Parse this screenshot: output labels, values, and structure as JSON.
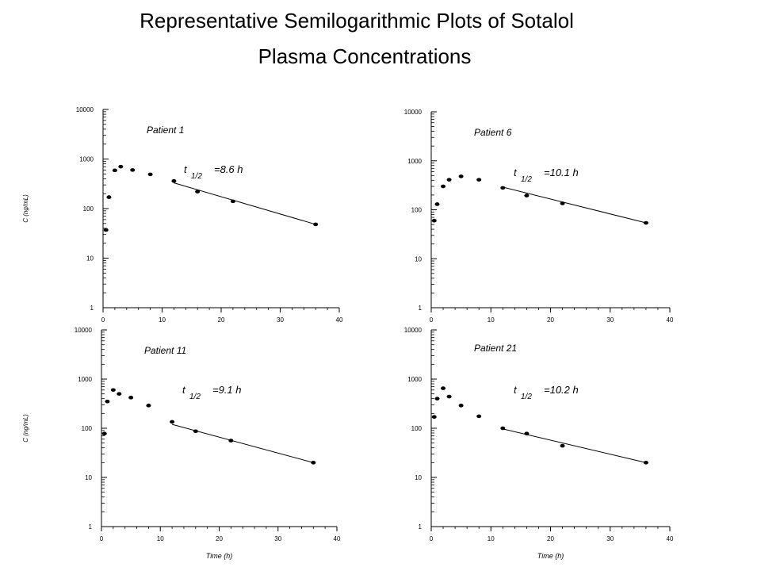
{
  "page": {
    "title_line1": "Representative Semilogarithmic Plots of Sotalol",
    "title_line2": "Plasma Concentrations"
  },
  "chart_data": [
    {
      "type": "scatter",
      "title": "Patient 1",
      "xlabel": "",
      "ylabel": "C (ng/mL)",
      "yscale": "log",
      "xlim": [
        0,
        40
      ],
      "ylim": [
        1,
        10000
      ],
      "xticks": [
        "0",
        "10",
        "20",
        "30",
        "40"
      ],
      "yticks": [
        "1",
        "10",
        "100",
        "1000",
        "10000"
      ],
      "points": [
        [
          0.5,
          37
        ],
        [
          1,
          170
        ],
        [
          2,
          590
        ],
        [
          3,
          700
        ],
        [
          5,
          600
        ],
        [
          8,
          490
        ],
        [
          12,
          360
        ],
        [
          16,
          220
        ],
        [
          22,
          140
        ],
        [
          36,
          48
        ]
      ],
      "fit_line": [
        [
          12,
          330
        ],
        [
          36,
          48
        ]
      ],
      "annotation": {
        "t": "t",
        "sub": "1/2",
        "value": "=8.6 h"
      }
    },
    {
      "type": "scatter",
      "title": "Patient 6",
      "xlabel": "",
      "ylabel": "",
      "yscale": "log",
      "xlim": [
        0,
        40
      ],
      "ylim": [
        1,
        10000
      ],
      "xticks": [
        "0",
        "10",
        "20",
        "30",
        "40"
      ],
      "yticks": [
        "1",
        "10",
        "100",
        "1000",
        "10000"
      ],
      "points": [
        [
          0.5,
          60
        ],
        [
          1,
          130
        ],
        [
          2,
          300
        ],
        [
          3,
          410
        ],
        [
          5,
          480
        ],
        [
          8,
          410
        ],
        [
          12,
          280
        ],
        [
          16,
          195
        ],
        [
          22,
          135
        ],
        [
          36,
          54
        ]
      ],
      "fit_line": [
        [
          12,
          290
        ],
        [
          36,
          54
        ]
      ],
      "annotation": {
        "t": "t",
        "sub": "1/2",
        "value": "=10.1 h"
      }
    },
    {
      "type": "scatter",
      "title": "Patient 11",
      "xlabel": "",
      "ylabel": "C (ng/mL)",
      "yscale": "log",
      "xlim": [
        0,
        40
      ],
      "ylim": [
        1,
        10000
      ],
      "xticks": [
        "0",
        "10",
        "20",
        "30",
        "40"
      ],
      "yticks": [
        "1",
        "10",
        "100",
        "1000",
        "10000"
      ],
      "points": [
        [
          0.5,
          78
        ],
        [
          1,
          350
        ],
        [
          2,
          600
        ],
        [
          3,
          500
        ],
        [
          5,
          420
        ],
        [
          8,
          290
        ],
        [
          12,
          135
        ],
        [
          16,
          87
        ],
        [
          22,
          56
        ],
        [
          36,
          20
        ]
      ],
      "fit_line": [
        [
          12,
          120
        ],
        [
          36,
          20
        ]
      ],
      "annotation": {
        "t": "t",
        "sub": "1/2",
        "value": "=9.1 h"
      }
    },
    {
      "type": "scatter",
      "title": "Patient 21",
      "xlabel": "Time (h)",
      "ylabel": "",
      "yscale": "log",
      "xlim": [
        0,
        40
      ],
      "ylim": [
        1,
        10000
      ],
      "xticks": [
        "0",
        "10",
        "20",
        "30",
        "40"
      ],
      "yticks": [
        "1",
        "10",
        "100",
        "1000",
        "10000"
      ],
      "points": [
        [
          0.5,
          170
        ],
        [
          1,
          400
        ],
        [
          2,
          650
        ],
        [
          3,
          440
        ],
        [
          5,
          290
        ],
        [
          8,
          175
        ],
        [
          12,
          100
        ],
        [
          16,
          78
        ],
        [
          22,
          44
        ],
        [
          36,
          20
        ]
      ],
      "fit_line": [
        [
          12,
          97
        ],
        [
          36,
          20
        ]
      ],
      "annotation": {
        "t": "t",
        "sub": "1/2",
        "value": "=10.2 h"
      }
    }
  ],
  "shared_xlabel_bottom_left": "Time (h)"
}
